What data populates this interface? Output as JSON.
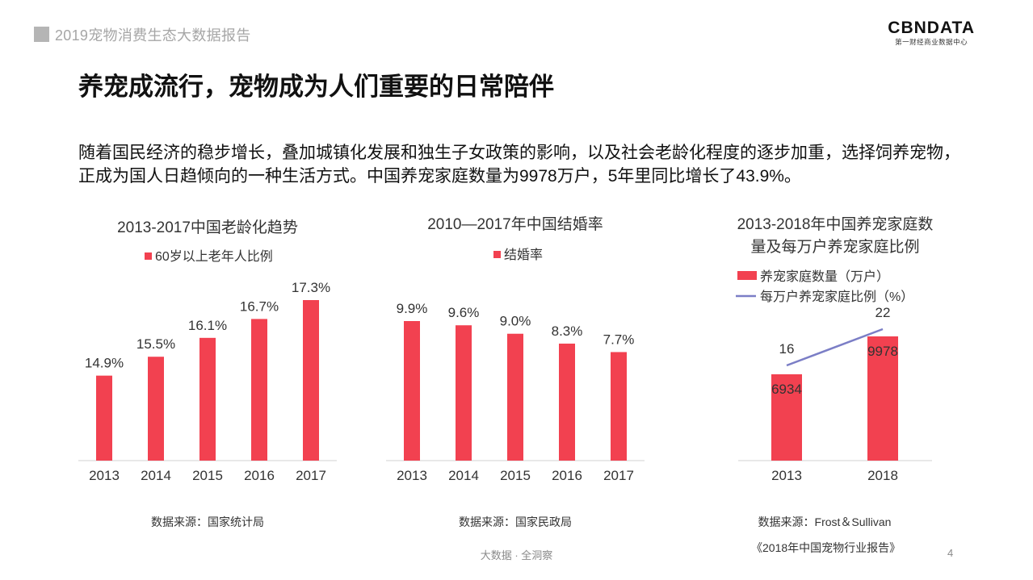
{
  "header": {
    "report_title": "2019宠物消费生态大数据报告"
  },
  "logo": {
    "main": "CBNDATA",
    "sub": "第一财经商业数据中心"
  },
  "page": {
    "title": "养宠成流行，宠物成为人们重要的日常陪伴",
    "intro": "随着国民经济的稳步增长，叠加城镇化发展和独生子女政策的影响，以及社会老龄化程度的逐步加重，选择饲养宠物，正成为国人日趋倾向的一种生活方式。中国养宠家庭数量为9978万户，5年里同比增长了43.9%。"
  },
  "colors": {
    "bar": "#f24150",
    "line": "#7b7ec6",
    "axis": "#d0d0d0"
  },
  "chart_data": [
    {
      "type": "bar",
      "title": "2013-2017中国老龄化趋势",
      "categories": [
        "2013",
        "2014",
        "2015",
        "2016",
        "2017"
      ],
      "series": [
        {
          "name": "60岁以上老年人比例",
          "values": [
            14.9,
            15.5,
            16.1,
            16.7,
            17.3
          ],
          "labels": [
            "14.9%",
            "15.5%",
            "16.1%",
            "16.7%",
            "17.3%"
          ]
        }
      ],
      "ylim": [
        12.2,
        17.3
      ],
      "source": "数据来源：国家统计局"
    },
    {
      "type": "bar",
      "title": "2010—2017年中国结婚率",
      "categories": [
        "2013",
        "2014",
        "2015",
        "2016",
        "2017"
      ],
      "series": [
        {
          "name": "结婚率",
          "values": [
            9.9,
            9.6,
            9.0,
            8.3,
            7.7
          ],
          "labels": [
            "9.9%",
            "9.6%",
            "9.0%",
            "8.3%",
            "7.7%"
          ]
        }
      ],
      "ylim": [
        0,
        9.9
      ],
      "source": "数据来源：国家民政局"
    },
    {
      "type": "bar+line",
      "title": [
        "2013-2018年中国养宠家庭数",
        "量及每万户养宠家庭比例"
      ],
      "categories": [
        "2013",
        "2018"
      ],
      "series": [
        {
          "name": "养宠家庭数量（万户）",
          "type": "bar",
          "values": [
            6934,
            9978
          ],
          "labels": [
            "6934",
            "9978"
          ]
        },
        {
          "name": "每万户养宠家庭比例（%）",
          "type": "line",
          "values": [
            16,
            22
          ],
          "labels": [
            "16",
            "22"
          ]
        }
      ],
      "ylim": [
        0,
        13000
      ],
      "line_ylim": [
        0,
        30
      ],
      "source": "数据来源：Frost＆Sullivan",
      "report": "《2018年中国宠物行业报告》"
    }
  ],
  "footer": {
    "text": "大数据 · 全洞察",
    "page_number": "4"
  }
}
